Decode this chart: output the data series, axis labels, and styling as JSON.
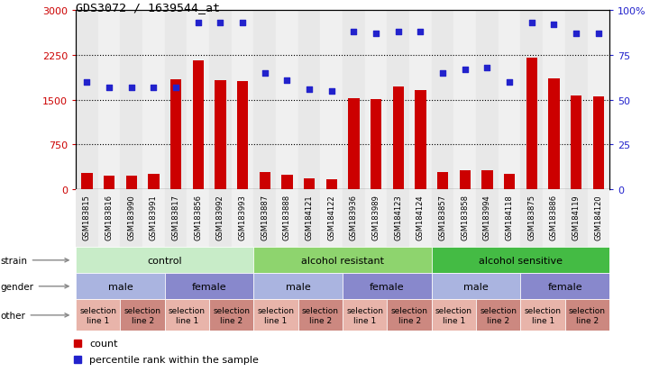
{
  "title": "GDS3072 / 1639544_at",
  "samples": [
    "GSM183815",
    "GSM183816",
    "GSM183990",
    "GSM183991",
    "GSM183817",
    "GSM183856",
    "GSM183992",
    "GSM183993",
    "GSM183887",
    "GSM183888",
    "GSM184121",
    "GSM184122",
    "GSM183936",
    "GSM183989",
    "GSM184123",
    "GSM184124",
    "GSM183857",
    "GSM183858",
    "GSM183994",
    "GSM184118",
    "GSM183875",
    "GSM183886",
    "GSM184119",
    "GSM184120"
  ],
  "bar_values": [
    270,
    235,
    235,
    255,
    1850,
    2160,
    1830,
    1820,
    295,
    245,
    185,
    170,
    1530,
    1510,
    1720,
    1670,
    285,
    320,
    320,
    255,
    2200,
    1855,
    1565,
    1550
  ],
  "dot_values": [
    60,
    57,
    57,
    57,
    57,
    93,
    93,
    93,
    65,
    61,
    56,
    55,
    88,
    87,
    88,
    88,
    65,
    67,
    68,
    60,
    93,
    92,
    87,
    87
  ],
  "bar_color": "#cc0000",
  "dot_color": "#2222cc",
  "ylim_left": [
    0,
    3000
  ],
  "ylim_right": [
    0,
    100
  ],
  "yticks_left": [
    0,
    750,
    1500,
    2250,
    3000
  ],
  "ytick_labels_left": [
    "0",
    "750",
    "1500",
    "2250",
    "3000"
  ],
  "yticks_right": [
    0,
    25,
    50,
    75,
    100
  ],
  "ytick_labels_right": [
    "0",
    "25",
    "50",
    "75",
    "100%"
  ],
  "strain_groups": [
    {
      "label": "control",
      "start": 0,
      "end": 8,
      "color": "#c8ecc8"
    },
    {
      "label": "alcohol resistant",
      "start": 8,
      "end": 16,
      "color": "#8ed46e"
    },
    {
      "label": "alcohol sensitive",
      "start": 16,
      "end": 24,
      "color": "#44bb44"
    }
  ],
  "gender_groups": [
    {
      "label": "male",
      "start": 0,
      "end": 4,
      "color": "#aab4e0"
    },
    {
      "label": "female",
      "start": 4,
      "end": 8,
      "color": "#8888cc"
    },
    {
      "label": "male",
      "start": 8,
      "end": 12,
      "color": "#aab4e0"
    },
    {
      "label": "female",
      "start": 12,
      "end": 16,
      "color": "#8888cc"
    },
    {
      "label": "male",
      "start": 16,
      "end": 20,
      "color": "#aab4e0"
    },
    {
      "label": "female",
      "start": 20,
      "end": 24,
      "color": "#8888cc"
    }
  ],
  "other_groups": [
    {
      "label": "selection\nline 1",
      "start": 0,
      "end": 2,
      "color": "#e8b4aa"
    },
    {
      "label": "selection\nline 2",
      "start": 2,
      "end": 4,
      "color": "#cc8880"
    },
    {
      "label": "selection\nline 1",
      "start": 4,
      "end": 6,
      "color": "#e8b4aa"
    },
    {
      "label": "selection\nline 2",
      "start": 6,
      "end": 8,
      "color": "#cc8880"
    },
    {
      "label": "selection\nline 1",
      "start": 8,
      "end": 10,
      "color": "#e8b4aa"
    },
    {
      "label": "selection\nline 2",
      "start": 10,
      "end": 12,
      "color": "#cc8880"
    },
    {
      "label": "selection\nline 1",
      "start": 12,
      "end": 14,
      "color": "#e8b4aa"
    },
    {
      "label": "selection\nline 2",
      "start": 14,
      "end": 16,
      "color": "#cc8880"
    },
    {
      "label": "selection\nline 1",
      "start": 16,
      "end": 18,
      "color": "#e8b4aa"
    },
    {
      "label": "selection\nline 2",
      "start": 18,
      "end": 20,
      "color": "#cc8880"
    },
    {
      "label": "selection\nline 1",
      "start": 20,
      "end": 22,
      "color": "#e8b4aa"
    },
    {
      "label": "selection\nline 2",
      "start": 22,
      "end": 24,
      "color": "#cc8880"
    }
  ],
  "row_labels": [
    "strain",
    "gender",
    "other"
  ],
  "col_bg_colors": [
    "#e8e8e8",
    "#f0f0f0"
  ]
}
